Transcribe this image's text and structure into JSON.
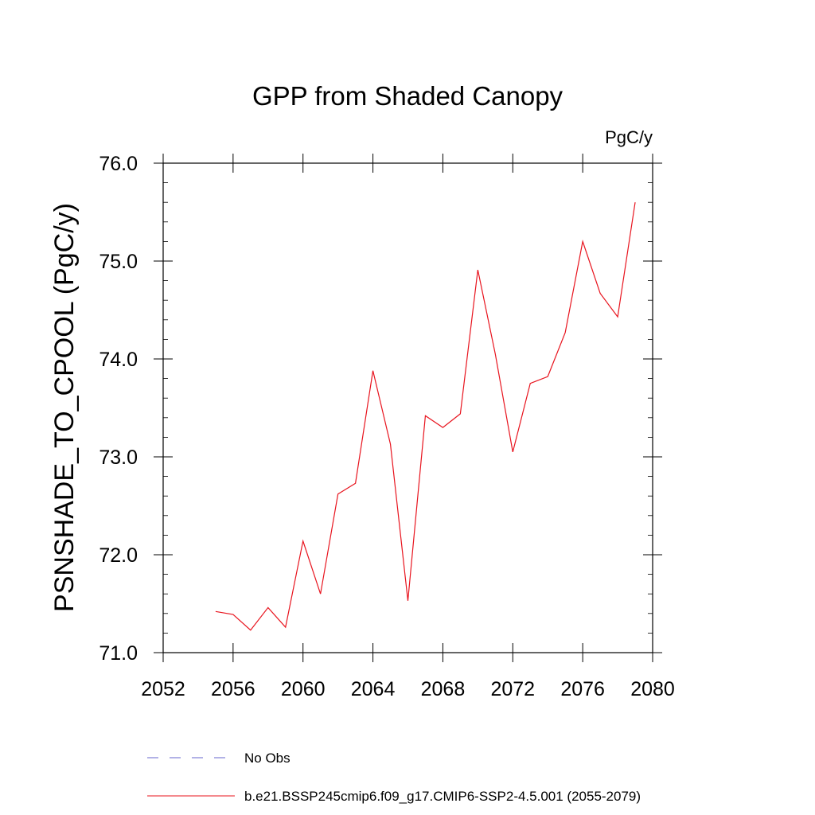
{
  "chart_data": {
    "type": "line",
    "title": "GPP from Shaded Canopy",
    "units_label": "PgC/y",
    "ylabel": "PSNSHADE_TO_CPOOL  (PgC/y)",
    "xlabel": "",
    "xlim": [
      2052,
      2080
    ],
    "ylim": [
      71.0,
      76.0
    ],
    "x_ticks": [
      2052,
      2056,
      2060,
      2064,
      2068,
      2072,
      2076,
      2080
    ],
    "x_tick_labels": [
      "2052",
      "2056",
      "2060",
      "2064",
      "2068",
      "2072",
      "2076",
      "2080"
    ],
    "y_ticks": [
      71.0,
      72.0,
      73.0,
      74.0,
      75.0,
      76.0
    ],
    "y_tick_labels": [
      "71.0",
      "72.0",
      "73.0",
      "74.0",
      "75.0",
      "76.0"
    ],
    "grid": false,
    "legend_position": "bottom",
    "series": [
      {
        "name": "b.e21.BSSP245cmip6.f09_g17.CMIP6-SSP2-4.5.001 (2055-2079)",
        "color": "#e8141e",
        "style": "solid",
        "x": [
          2055,
          2056,
          2057,
          2058,
          2059,
          2060,
          2061,
          2062,
          2063,
          2064,
          2065,
          2066,
          2067,
          2068,
          2069,
          2070,
          2071,
          2072,
          2073,
          2074,
          2075,
          2076,
          2077,
          2078,
          2079
        ],
        "values": [
          71.42,
          71.39,
          71.23,
          71.46,
          71.26,
          72.14,
          71.6,
          72.62,
          72.73,
          73.88,
          73.13,
          71.53,
          73.42,
          73.3,
          73.44,
          74.91,
          74.05,
          73.05,
          73.75,
          73.82,
          74.27,
          75.2,
          74.67,
          74.43,
          75.6
        ]
      }
    ],
    "legend": [
      {
        "label": "No Obs",
        "color": "#6666cc",
        "style": "dashed"
      },
      {
        "label": "b.e21.BSSP245cmip6.f09_g17.CMIP6-SSP2-4.5.001 (2055-2079)",
        "color": "#e8141e",
        "style": "solid"
      }
    ]
  }
}
